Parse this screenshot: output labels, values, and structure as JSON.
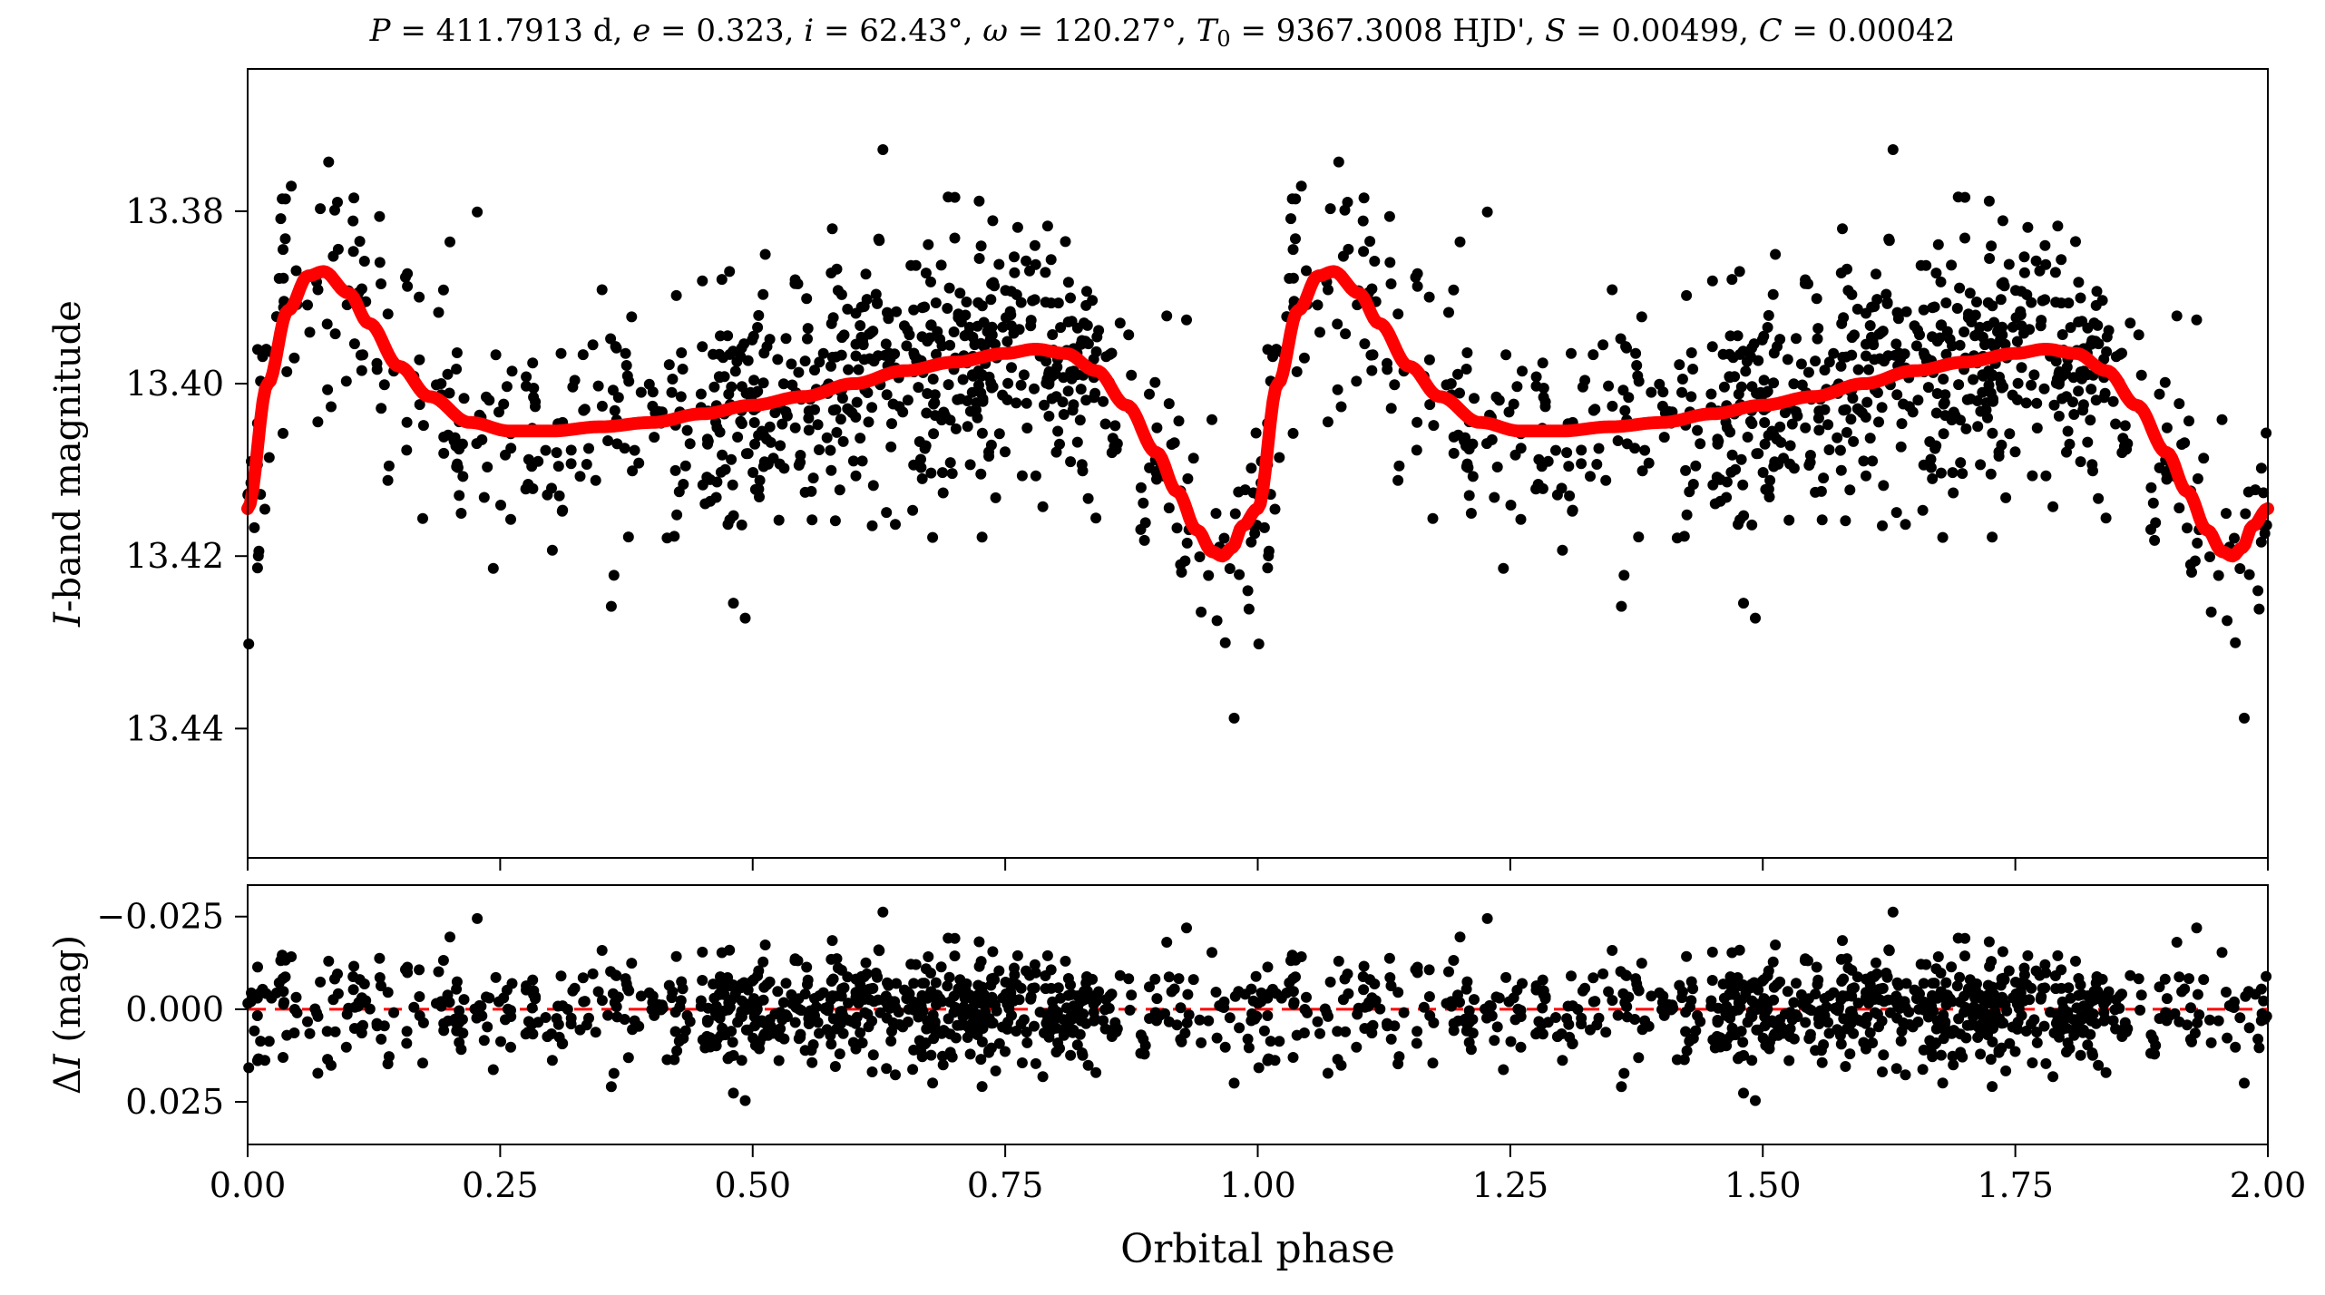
{
  "chart_data": [
    {
      "type": "scatter",
      "panel": "light-curve",
      "title": "P = 411.7913 d, e = 0.323, i = 62.43°, ω = 120.27°, T0 = 9367.3008 HJD', S = 0.00499, C = 0.00042",
      "title_parts": {
        "P": "411.7913 d",
        "e": "0.323",
        "i": "62.43°",
        "omega": "120.27°",
        "T0": "9367.3008 HJD'",
        "S": "0.00499",
        "C": "0.00042"
      },
      "xlabel": "Orbital phase",
      "ylabel_italic": "I",
      "ylabel_rest": "-band magnitude",
      "xlim": [
        0.0,
        2.0
      ],
      "ylim": [
        13.455,
        13.3635
      ],
      "y_inverted": true,
      "xticks": [
        0.0,
        0.25,
        0.5,
        0.75,
        1.0,
        1.25,
        1.5,
        1.75,
        2.0
      ],
      "yticks": [
        13.38,
        13.4,
        13.42,
        13.44
      ],
      "ytick_labels": [
        "13.38",
        "13.40",
        "13.42",
        "13.44"
      ],
      "grid": false,
      "series": [
        {
          "kind": "points",
          "color": "#000000",
          "description_of_points": "approx. 800 observations per cycle, repeated for phase 0-1 and 1-2",
          "period": 1.0
        },
        {
          "kind": "model",
          "color": "#ff0000",
          "model_x": [
            0.0,
            0.02,
            0.04,
            0.06,
            0.075,
            0.1,
            0.12,
            0.15,
            0.18,
            0.22,
            0.26,
            0.3,
            0.35,
            0.4,
            0.45,
            0.5,
            0.55,
            0.6,
            0.65,
            0.7,
            0.75,
            0.78,
            0.81,
            0.84,
            0.87,
            0.9,
            0.92,
            0.94,
            0.955,
            0.965,
            0.975,
            0.985,
            1.0
          ],
          "model_y": [
            13.4145,
            13.4,
            13.3915,
            13.3875,
            13.387,
            13.3895,
            13.393,
            13.398,
            13.4015,
            13.4045,
            13.4055,
            13.4055,
            13.405,
            13.4045,
            13.4035,
            13.4025,
            13.4015,
            13.4,
            13.3985,
            13.3975,
            13.3965,
            13.396,
            13.3965,
            13.3985,
            13.4025,
            13.408,
            13.4125,
            13.417,
            13.4195,
            13.42,
            13.419,
            13.4165,
            13.4145
          ]
        }
      ],
      "seed": 7,
      "points_per_cycle": 800
    },
    {
      "type": "scatter",
      "panel": "residuals",
      "xlabel": "Orbital phase",
      "ylabel_greek": "Δ",
      "ylabel_italic": "I",
      "ylabel_rest": " (mag)",
      "xlim": [
        0.0,
        2.0
      ],
      "ylim": [
        0.0365,
        -0.0335
      ],
      "y_inverted": true,
      "xticks": [
        0.0,
        0.25,
        0.5,
        0.75,
        1.0,
        1.25,
        1.5,
        1.75,
        2.0
      ],
      "xtick_labels": [
        "0.00",
        "0.25",
        "0.50",
        "0.75",
        "1.00",
        "1.25",
        "1.50",
        "1.75",
        "2.00"
      ],
      "yticks": [
        -0.025,
        0.0,
        0.025
      ],
      "ytick_labels": [
        "−0.025",
        "0.000",
        "0.025"
      ],
      "zero_line": {
        "value": 0.0,
        "color": "#ff0000",
        "style": "dashed"
      },
      "grid": false
    }
  ]
}
